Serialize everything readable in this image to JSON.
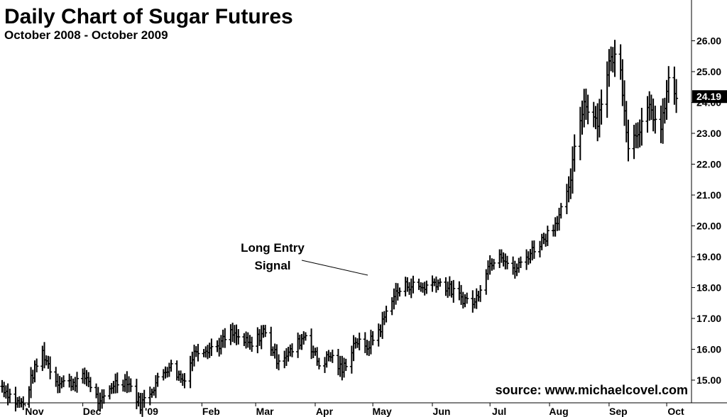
{
  "chart_data": {
    "type": "ohlc",
    "title": "Daily Chart of Sugar Futures",
    "subtitle": "October 2008 - October 2009",
    "y_ticks": [
      "15.00",
      "16.00",
      "17.00",
      "18.00",
      "19.00",
      "20.00",
      "21.00",
      "22.00",
      "23.00",
      "24.00",
      "25.00",
      "26.00"
    ],
    "ylim": [
      13.8,
      26.7
    ],
    "x_ticks": [
      "Nov",
      "Dec",
      "'09",
      "Feb",
      "Mar",
      "Apr",
      "May",
      "Jun",
      "Jul",
      "Aug",
      "Sep",
      "Oct"
    ],
    "last_price": "24.19",
    "last_price_value": 24.19,
    "grid": false,
    "y_axis_side": "right",
    "annotation": {
      "text_line1": "Long Entry",
      "text_line2": "Signal",
      "target_month": "May"
    },
    "source": "source: www.michaelcovel.com",
    "colors": {
      "bars": "#000000",
      "background": "#ffffff",
      "last_price_box": "#000000"
    },
    "series": [
      {
        "knots": [
          [
            "2008-10-20",
            14.8
          ],
          [
            "2008-10-27",
            14.3
          ],
          [
            "2008-10-31",
            14.2
          ],
          [
            "2008-11-05",
            15.2
          ],
          [
            "2008-11-10",
            15.9
          ],
          [
            "2008-11-17",
            15.0
          ],
          [
            "2008-11-24",
            14.9
          ],
          [
            "2008-12-03",
            15.1
          ],
          [
            "2008-12-10",
            14.2
          ],
          [
            "2008-12-17",
            14.9
          ],
          [
            "2008-12-24",
            15.0
          ],
          [
            "2008-12-31",
            14.2
          ],
          [
            "2009-01-08",
            14.9
          ],
          [
            "2009-01-15",
            15.5
          ],
          [
            "2009-01-22",
            15.0
          ],
          [
            "2009-01-29",
            16.0
          ],
          [
            "2009-02-09",
            16.1
          ],
          [
            "2009-02-16",
            16.5
          ],
          [
            "2009-02-27",
            16.1
          ],
          [
            "2009-03-05",
            16.6
          ],
          [
            "2009-03-12",
            15.7
          ],
          [
            "2009-03-19",
            15.9
          ],
          [
            "2009-03-27",
            16.5
          ],
          [
            "2009-04-03",
            15.5
          ],
          [
            "2009-04-09",
            15.8
          ],
          [
            "2009-04-15",
            15.3
          ],
          [
            "2009-04-22",
            16.3
          ],
          [
            "2009-04-27",
            16.0
          ],
          [
            "2009-05-05",
            16.7
          ],
          [
            "2009-05-11",
            17.7
          ],
          [
            "2009-05-19",
            18.1
          ],
          [
            "2009-05-27",
            18.0
          ],
          [
            "2009-06-03",
            18.2
          ],
          [
            "2009-06-09",
            18.0
          ],
          [
            "2009-06-15",
            17.7
          ],
          [
            "2009-06-23",
            17.5
          ],
          [
            "2009-06-29",
            18.6
          ],
          [
            "2009-07-06",
            19.2
          ],
          [
            "2009-07-13",
            18.5
          ],
          [
            "2009-07-20",
            19.0
          ],
          [
            "2009-07-29",
            19.6
          ],
          [
            "2009-08-04",
            20.1
          ],
          [
            "2009-08-11",
            21.1
          ],
          [
            "2009-08-15",
            22.9
          ],
          [
            "2009-08-19",
            24.0
          ],
          [
            "2009-08-26",
            23.4
          ],
          [
            "2009-09-01",
            25.3
          ],
          [
            "2009-09-06",
            25.6
          ],
          [
            "2009-09-11",
            22.6
          ],
          [
            "2009-09-17",
            23.2
          ],
          [
            "2009-09-22",
            23.8
          ],
          [
            "2009-09-28",
            23.1
          ],
          [
            "2009-10-02",
            24.7
          ],
          [
            "2009-10-06",
            24.2
          ]
        ]
      }
    ]
  }
}
